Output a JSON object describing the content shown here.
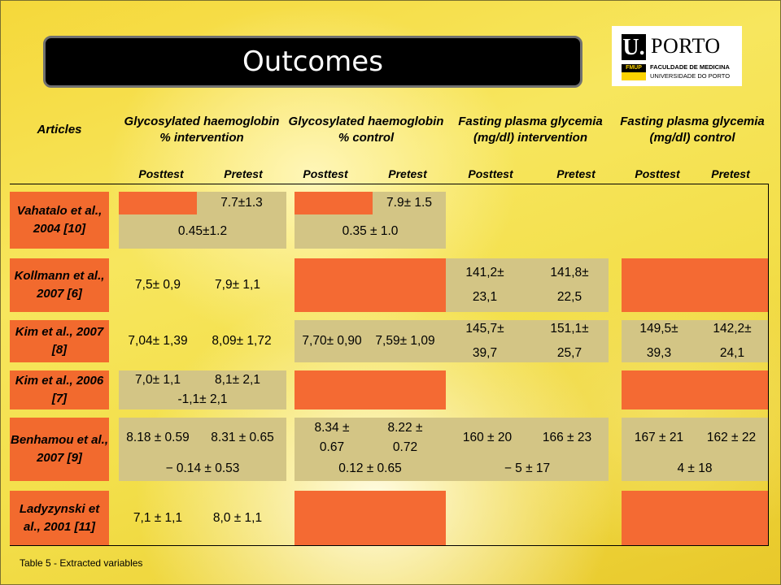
{
  "title": "Outcomes",
  "logo": {
    "u": "U.",
    "porto": "PORTO",
    "fmup": "FMUP",
    "faculty": "FACULDADE DE MEDICINA",
    "university": "UNIVERSIDADE DO PORTO"
  },
  "columns": {
    "articles": "Articles",
    "hba1c_int": "Glycosylated haemoglobin % intervention",
    "hba1c_ctrl": "Glycosylated haemoglobin % control",
    "fpg_int": "Fasting plasma glycemia (mg/dl) intervention",
    "fpg_ctrl": "Fasting plasma glycemia (mg/dl) control",
    "posttest": "Posttest",
    "pretest": "Pretest"
  },
  "rows": {
    "vahatalo": {
      "article": "Vahatalo et al., 2004 [10]",
      "hba1c_int_pre": "7.7±1.3",
      "hba1c_ctrl_pre": "7.9± 1.5",
      "hba1c_int_diff": "0.45±1.2",
      "hba1c_ctrl_diff": "0.35 ± 1.0"
    },
    "kollmann": {
      "article": "Kollmann et al., 2007 [6]",
      "hba1c_int_post": "7,5± 0,9",
      "hba1c_int_pre": "7,9± 1,1",
      "fpg_int_post": "141,2± 23,1",
      "fpg_int_pre": "141,8± 22,5"
    },
    "kim2007": {
      "article": "Kim et al., 2007 [8]",
      "hba1c_int_post": "7,04± 1,39",
      "hba1c_int_pre": "8,09± 1,72",
      "hba1c_ctrl_post": "7,70± 0,90",
      "hba1c_ctrl_pre": "7,59± 1,09",
      "fpg_int_post": "145,7± 39,7",
      "fpg_int_pre": "151,1± 25,7",
      "fpg_ctrl_post": "149,5± 39,3",
      "fpg_ctrl_pre": "142,2± 24,1"
    },
    "kim2006": {
      "article": "Kim et al., 2006 [7]",
      "hba1c_int_post": "7,0± 1,1",
      "hba1c_int_pre": "8,1± 2,1",
      "hba1c_int_diff": "-1,1± 2,1"
    },
    "benhamou": {
      "article": "Benhamou et al., 2007 [9]",
      "hba1c_int_post": "8.18 ± 0.59",
      "hba1c_int_pre": "8.31 ± 0.65",
      "hba1c_ctrl_post": "8.34 ± 0.67",
      "hba1c_ctrl_pre": "8.22 ± 0.72",
      "fpg_int_post": "160 ± 20",
      "fpg_int_pre": "166 ± 23",
      "fpg_ctrl_post": "167 ± 21",
      "fpg_ctrl_pre": "162 ± 22",
      "hba1c_int_diff": "− 0.14 ± 0.53",
      "hba1c_ctrl_diff": "0.12 ± 0.65",
      "fpg_int_diff": "− 5 ± 17",
      "fpg_ctrl_diff": "4 ± 18"
    },
    "ladyzynski": {
      "article": "Ladyzynski et al., 2001 [11]",
      "hba1c_int_post": "7,1 ± 1,1",
      "hba1c_int_pre": "8,0 ± 1,1"
    }
  },
  "caption": "Table 5 - Extracted variables",
  "colors": {
    "article_bg": "#f26a2e",
    "empty_bg": "#f46a33",
    "gray_bg": "#d3c585",
    "yellow_bg": "#f5e635",
    "title_bg": "#000000"
  }
}
